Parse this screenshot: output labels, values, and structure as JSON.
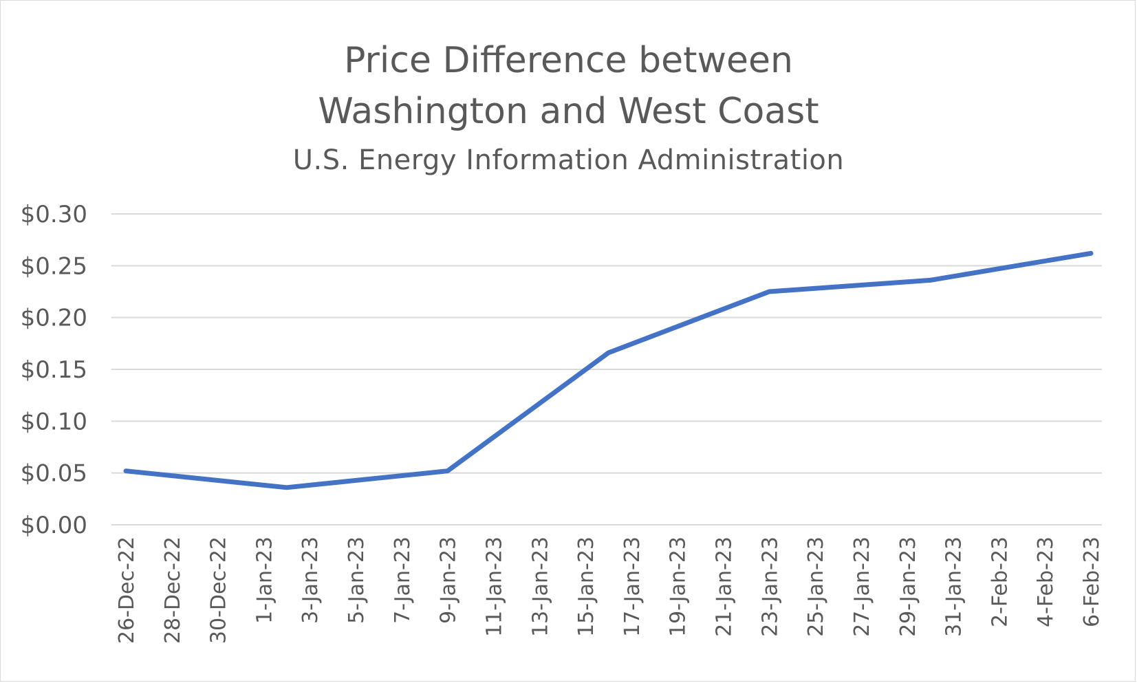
{
  "chart_data": {
    "type": "line",
    "title_lines": [
      "Price Difference between",
      "Washington and West Coast"
    ],
    "subtitle": "U.S. Energy Information Administration",
    "xlabel": "",
    "ylabel": "",
    "ylim": [
      0,
      0.3
    ],
    "yticks": [
      0.0,
      0.05,
      0.1,
      0.15,
      0.2,
      0.25,
      0.3
    ],
    "ytick_labels": [
      "$0.00",
      "$0.05",
      "$0.10",
      "$0.15",
      "$0.20",
      "$0.25",
      "$0.30"
    ],
    "xlim": [
      "2022-12-26",
      "2023-02-06"
    ],
    "xtick_labels": [
      "26-Dec-22",
      "28-Dec-22",
      "30-Dec-22",
      "1-Jan-23",
      "3-Jan-23",
      "5-Jan-23",
      "7-Jan-23",
      "9-Jan-23",
      "11-Jan-23",
      "13-Jan-23",
      "15-Jan-23",
      "17-Jan-23",
      "19-Jan-23",
      "21-Jan-23",
      "23-Jan-23",
      "25-Jan-23",
      "27-Jan-23",
      "29-Jan-23",
      "31-Jan-23",
      "2-Feb-23",
      "4-Feb-23",
      "6-Feb-23"
    ],
    "grid": true,
    "legend": "none",
    "series": [
      {
        "color": "#4472c4",
        "x": [
          "2022-12-26",
          "2023-01-02",
          "2023-01-09",
          "2023-01-16",
          "2023-01-23",
          "2023-01-30",
          "2023-02-06"
        ],
        "y": [
          0.052,
          0.036,
          0.052,
          0.166,
          0.225,
          0.236,
          0.262
        ]
      }
    ]
  }
}
